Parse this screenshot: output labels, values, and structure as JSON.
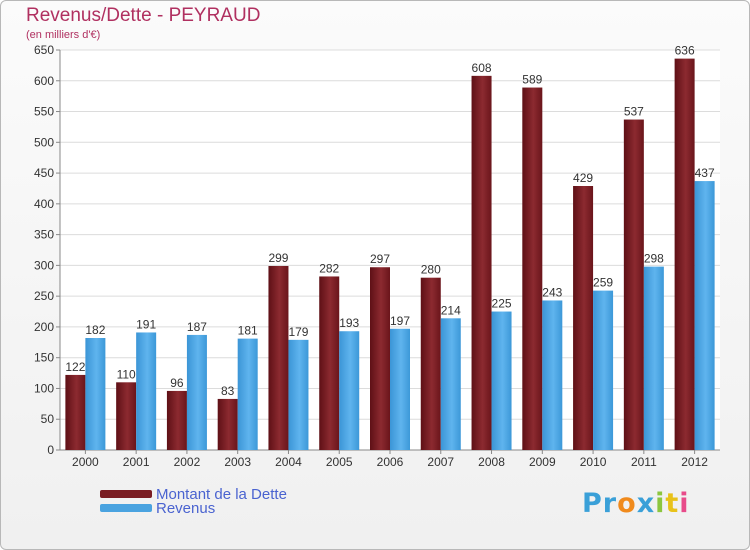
{
  "chart_data": {
    "type": "bar",
    "title": "Revenus/Dette - PEYRAUD",
    "subtitle": "(en milliers d'€)",
    "categories": [
      "2000",
      "2001",
      "2002",
      "2003",
      "2004",
      "2005",
      "2006",
      "2007",
      "2008",
      "2009",
      "2010",
      "2011",
      "2012"
    ],
    "series": [
      {
        "name": "Montant de la Dette",
        "color": "#7a1c22",
        "values": [
          122,
          110,
          96,
          83,
          299,
          282,
          297,
          280,
          608,
          589,
          429,
          537,
          636
        ]
      },
      {
        "name": "Revenus",
        "color": "#4aa3e0",
        "values": [
          182,
          191,
          187,
          181,
          179,
          193,
          197,
          214,
          225,
          243,
          259,
          298,
          437
        ]
      }
    ],
    "ylim": [
      0,
      650
    ],
    "yticks": [
      0,
      50,
      100,
      150,
      200,
      250,
      300,
      350,
      400,
      450,
      500,
      550,
      600,
      650
    ],
    "grid": true,
    "legend_position": "bottom-left"
  },
  "brand": {
    "letters": [
      {
        "char": "P",
        "color": "#3aa0d8"
      },
      {
        "char": "r",
        "color": "#3aa0d8"
      },
      {
        "char": "o",
        "color": "#f08a1c"
      },
      {
        "char": "x",
        "color": "#3aa0d8"
      },
      {
        "char": "i",
        "color": "#8cc63f"
      },
      {
        "char": "t",
        "color": "#e8c21a"
      },
      {
        "char": "i",
        "color": "#e84b8a"
      }
    ]
  }
}
